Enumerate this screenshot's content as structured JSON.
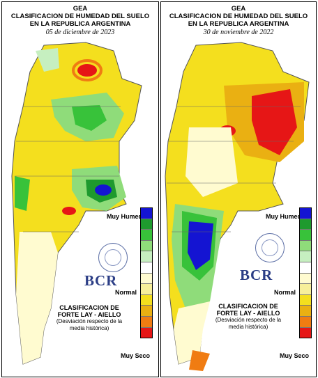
{
  "panels": [
    {
      "agency": "GEA",
      "title_line1": "CLASIFICACION DE HUMEDAD DEL SUELO",
      "title_line2": "EN LA REPUBLICA ARGENTINA",
      "date": "05 de diciembre de 2023",
      "legend_top": "Muy Humedo",
      "legend_mid": "Normal",
      "legend_bottom": "Muy Seco",
      "brand": "BCR",
      "credits_title1": "CLASIFICACION DE",
      "credits_title2": "FORTE LAY - AIELLO",
      "credits_note": "(Desviación respecto de la media histórica)"
    },
    {
      "agency": "GEA",
      "title_line1": "CLASIFICACION DE HUMEDAD DEL SUELO",
      "title_line2": "EN LA REPUBLICA ARGENTINA",
      "date": "30 de noviembre de 2022",
      "legend_top": "Muy Humedo",
      "legend_mid": "Normal",
      "legend_bottom": "Muy Seco",
      "brand": "BCR",
      "credits_title1": "CLASIFICACION DE",
      "credits_title2": "FORTE LAY - AIELLO",
      "credits_note": "(Desviación respecto de la media histórica)"
    }
  ],
  "legend_colors": [
    "#1414d2",
    "#1e9a2e",
    "#38c23a",
    "#8fdc7a",
    "#c6efc0",
    "#ffffff",
    "#fffbd0",
    "#f7ef9a",
    "#f4df1e",
    "#eab012",
    "#f07c12",
    "#e61616"
  ]
}
